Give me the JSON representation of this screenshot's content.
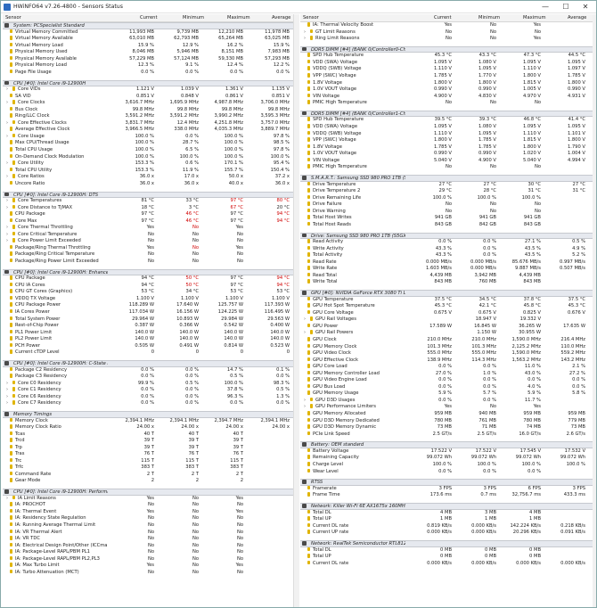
{
  "window": {
    "title": "HWiNFO64 v7.26-4800 - Sensors Status",
    "min": "—",
    "max": "☐",
    "close": "✕"
  },
  "columns": {
    "sensor": "Sensor",
    "current": "Current",
    "minimum": "Minimum",
    "maximum": "Maximum",
    "average": "Average"
  },
  "left": [
    [
      "sect",
      "System: PCSpecialist Standard"
    ],
    [
      "i",
      "Virtual Memory Committed",
      "11,993 MB",
      "9,739 MB",
      "12,210 MB",
      "11,978 MB"
    ],
    [
      "i",
      "Virtual Memory Available",
      "63,010 MB",
      "62,793 MB",
      "65,264 MB",
      "63,025 MB"
    ],
    [
      "i",
      "Virtual Memory Load",
      "15.9 %",
      "12.9 %",
      "16.2 %",
      "15.9 %"
    ],
    [
      "i",
      "Physical Memory Used",
      "8,046 MB",
      "5,946 MB",
      "8,151 MB",
      "7,983 MB"
    ],
    [
      "i",
      "Physical Memory Available",
      "57,229 MB",
      "57,124 MB",
      "59,330 MB",
      "57,293 MB"
    ],
    [
      "i",
      "Physical Memory Load",
      "12.3 %",
      "9.1 %",
      "12.4 %",
      "12.2 %"
    ],
    [
      "i",
      "Page File Usage",
      "0.0 %",
      "0.0 %",
      "0.0 %",
      "0.0 %"
    ],
    [
      "gap"
    ],
    [
      "sect",
      "CPU [#0]: Intel Core i9-12900H"
    ],
    [
      "e",
      "Core VIDs",
      "1.121 V",
      "1.039 V",
      "1.361 V",
      "1.135 V"
    ],
    [
      "i",
      "SA VID",
      "0.851 V",
      "0.848 V",
      "0.861 V",
      "0.851 V"
    ],
    [
      "e",
      "Core Clocks",
      "3,616.7 MHz",
      "1,695.9 MHz",
      "4,987.8 MHz",
      "3,706.0 MHz"
    ],
    [
      "i",
      "Bus Clock",
      "99.8 MHz",
      "99.8 MHz",
      "99.8 MHz",
      "99.8 MHz"
    ],
    [
      "i",
      "Ring/LLC Clock",
      "3,591.2 MHz",
      "3,591.2 MHz",
      "3,990.2 MHz",
      "3,595.3 MHz"
    ],
    [
      "e",
      "Core Effective Clocks",
      "3,831.7 MHz",
      "12.4 MHz",
      "4,251.8 MHz",
      "3,757.0 MHz"
    ],
    [
      "i",
      "Average Effective Clock",
      "3,966.5 MHz",
      "338.0 MHz",
      "4,035.3 MHz",
      "3,889.7 MHz"
    ],
    [
      "e",
      "Core Usage",
      "100.0 %",
      "0.0 %",
      "100.0 %",
      "97.8 %"
    ],
    [
      "i",
      "Max CPU/Thread Usage",
      "100.0 %",
      "28.7 %",
      "100.0 %",
      "98.5 %"
    ],
    [
      "i",
      "Total CPU Usage",
      "100.0 %",
      "6.5 %",
      "100.0 %",
      "97.8 %"
    ],
    [
      "i",
      "On-Demand Clock Modulation",
      "100.0 %",
      "100.0 %",
      "100.0 %",
      "100.0 %"
    ],
    [
      "e",
      "Core Utility",
      "153.3 %",
      "0.6 %",
      "170.1 %",
      "95.4 %"
    ],
    [
      "i",
      "Total CPU Utility",
      "153.3 %",
      "11.9 %",
      "155.7 %",
      "150.4 %"
    ],
    [
      "e",
      "Core Ratios",
      "36.0 x",
      "17.0 x",
      "50.0 x",
      "37.2 x"
    ],
    [
      "i",
      "Uncore Ratio",
      "36.0 x",
      "36.0 x",
      "40.0 x",
      "36.0 x"
    ],
    [
      "gap"
    ],
    [
      "sect",
      "CPU [#0]: Intel Core i9-12900H: DTS"
    ],
    [
      "e",
      "Core Temperatures",
      "81 °C",
      "33 °C",
      "97 °C",
      "80 °C"
    ],
    [
      "e",
      "Core Distance to TjMAX",
      "18 °C",
      "3 °C",
      "67 °C",
      "20 °C"
    ],
    [
      "i",
      "CPU Package",
      "97 °C",
      "46 °C",
      "97 °C",
      "94 °C"
    ],
    [
      "i",
      "Core Max",
      "97 °C",
      "46 °C",
      "97 °C",
      "94 °C"
    ],
    [
      "e",
      "Core Thermal Throttling",
      "Yes",
      "No",
      "Yes",
      ""
    ],
    [
      "e",
      "Core Critical Temperature",
      "No",
      "No",
      "No",
      ""
    ],
    [
      "e",
      "Core Power Limit Exceeded",
      "No",
      "No",
      "No",
      ""
    ],
    [
      "i",
      "Package/Ring Thermal Throttling",
      "Yes",
      "No",
      "Yes",
      ""
    ],
    [
      "i",
      "Package/Ring Critical Temperature",
      "No",
      "No",
      "No",
      ""
    ],
    [
      "i",
      "Package/Ring Power Limit Exceeded",
      "No",
      "No",
      "No",
      ""
    ],
    [
      "gap"
    ],
    [
      "sect",
      "CPU [#0]: Intel Core i9-12900H: Enhanced"
    ],
    [
      "i",
      "CPU Package",
      "94 °C",
      "50 °C",
      "97 °C",
      "94 °C"
    ],
    [
      "i",
      "CPU IA Cores",
      "94 °C",
      "50 °C",
      "97 °C",
      "94 °C"
    ],
    [
      "i",
      "CPU GT Cores (Graphics)",
      "53 °C",
      "34 °C",
      "53 °C",
      "53 °C"
    ],
    [
      "i",
      "VDDQ TX Voltage",
      "1.100 V",
      "1.100 V",
      "1.100 V",
      "1.100 V"
    ],
    [
      "i",
      "CPU Package Power",
      "118.289 W",
      "17.640 W",
      "125.757 W",
      "117.393 W"
    ],
    [
      "i",
      "IA Cores Power",
      "117.034 W",
      "16.156 W",
      "124.225 W",
      "116.495 W"
    ],
    [
      "i",
      "Total System Power",
      "29.964 W",
      "10.893 W",
      "29.984 W",
      "29.563 W"
    ],
    [
      "i",
      "Rest-of-Chip Power",
      "0.387 W",
      "0.366 W",
      "0.542 W",
      "0.400 W"
    ],
    [
      "i",
      "PL1 Power Limit",
      "140.0 W",
      "140.0 W",
      "140.0 W",
      "140.0 W"
    ],
    [
      "i",
      "PL2 Power Limit",
      "140.0 W",
      "140.0 W",
      "140.0 W",
      "140.0 W"
    ],
    [
      "i",
      "PCH Power",
      "0.505 W",
      "0.491 W",
      "0.814 W",
      "0.523 W"
    ],
    [
      "i",
      "Current cTDP Level",
      "0",
      "0",
      "0",
      "0"
    ],
    [
      "gap"
    ],
    [
      "sect",
      "CPU [#0]: Intel Core i9-12900H: C-State Re..."
    ],
    [
      "i",
      "Package C2 Residency",
      "0.0 %",
      "0.0 %",
      "14.7 %",
      "0.1 %"
    ],
    [
      "i",
      "Package C3 Residency",
      "0.0 %",
      "0.0 %",
      "0.5 %",
      "0.0 %"
    ],
    [
      "e",
      "Core C0 Residency",
      "99.9 %",
      "0.5 %",
      "100.0 %",
      "98.3 %"
    ],
    [
      "e",
      "Core C1 Residency",
      "0.0 %",
      "0.0 %",
      "37.8 %",
      "0.5 %"
    ],
    [
      "e",
      "Core C6 Residency",
      "0.0 %",
      "0.0 %",
      "96.3 %",
      "1.3 %"
    ],
    [
      "e",
      "Core C7 Residency",
      "0.0 %",
      "0.0 %",
      "0.0 %",
      "0.0 %"
    ],
    [
      "gap"
    ],
    [
      "sect",
      "Memory Timings"
    ],
    [
      "i",
      "Memory Clock",
      "2,394.1 MHz",
      "2,394.1 MHz",
      "2,394.7 MHz",
      "2,394.1 MHz"
    ],
    [
      "i",
      "Memory Clock Ratio",
      "24.00 x",
      "24.00 x",
      "24.00 x",
      "24.00 x"
    ],
    [
      "i",
      "Tcas",
      "40 T",
      "40 T",
      "40 T",
      ""
    ],
    [
      "i",
      "Trcd",
      "39 T",
      "39 T",
      "39 T",
      ""
    ],
    [
      "i",
      "Trp",
      "39 T",
      "39 T",
      "39 T",
      ""
    ],
    [
      "i",
      "Tras",
      "76 T",
      "76 T",
      "76 T",
      ""
    ],
    [
      "i",
      "Trc",
      "115 T",
      "115 T",
      "115 T",
      ""
    ],
    [
      "i",
      "Trfc",
      "383 T",
      "383 T",
      "383 T",
      ""
    ],
    [
      "i",
      "Command Rate",
      "2 T",
      "2 T",
      "2 T",
      ""
    ],
    [
      "i",
      "Gear Mode",
      "2",
      "2",
      "2",
      ""
    ],
    [
      "gap"
    ],
    [
      "sect",
      "CPU [#0]: Intel Core i9-12900H: Performan..."
    ],
    [
      "e",
      "IA Limit Reasons",
      "Yes",
      "No",
      "Yes",
      ""
    ],
    [
      "i",
      "IA: PROCHOT",
      "No",
      "No",
      "No",
      ""
    ],
    [
      "i",
      "IA: Thermal Event",
      "Yes",
      "No",
      "Yes",
      ""
    ],
    [
      "i",
      "IA: Residency State Regulation",
      "No",
      "No",
      "No",
      ""
    ],
    [
      "i",
      "IA: Running Average Thermal Limit",
      "No",
      "No",
      "No",
      ""
    ],
    [
      "i",
      "IA: VR Thermal Alert",
      "No",
      "No",
      "No",
      ""
    ],
    [
      "i",
      "IA: VR TDC",
      "No",
      "No",
      "No",
      ""
    ],
    [
      "i",
      "IA: Electrical Design Point/Other (ICCma...",
      "No",
      "No",
      "No",
      ""
    ],
    [
      "i",
      "IA: Package-Level RAPL/PBM PL1",
      "No",
      "No",
      "No",
      ""
    ],
    [
      "i",
      "IA: Package-Level RAPL/PBM PL2,PL3",
      "No",
      "No",
      "No",
      ""
    ],
    [
      "i",
      "IA: Max Turbo Limit",
      "Yes",
      "No",
      "Yes",
      ""
    ],
    [
      "i",
      "IA: Turbo Attenuation (MCT)",
      "No",
      "No",
      "No",
      ""
    ]
  ],
  "right": [
    [
      "i",
      "IA: Thermal Velocity Boost",
      "Yes",
      "No",
      "Yes",
      ""
    ],
    [
      "e",
      "GT Limit Reasons",
      "No",
      "No",
      "No",
      ""
    ],
    [
      "e",
      "Ring Limit Reasons",
      "No",
      "No",
      "Yes",
      ""
    ],
    [
      "gap"
    ],
    [
      "sect",
      "DDR5 DIMM [#4] (BANK 0/Controller0-Chan..."
    ],
    [
      "i",
      "SPD Hub Temperature",
      "45.3 °C",
      "43.3 °C",
      "47.3 °C",
      "44.5 °C"
    ],
    [
      "i",
      "VDD (SWA) Voltage",
      "1.095 V",
      "1.080 V",
      "1.095 V",
      "1.095 V"
    ],
    [
      "i",
      "VDDQ (SWB) Voltage",
      "1.110 V",
      "1.095 V",
      "1.110 V",
      "1.097 V"
    ],
    [
      "i",
      "VPP (SWC) Voltage",
      "1.785 V",
      "1.770 V",
      "1.800 V",
      "1.785 V"
    ],
    [
      "i",
      "1.8V Voltage",
      "1.800 V",
      "1.800 V",
      "1.815 V",
      "1.800 V"
    ],
    [
      "i",
      "1.0V VOUT Voltage",
      "0.990 V",
      "0.990 V",
      "1.005 V",
      "0.990 V"
    ],
    [
      "i",
      "VIN Voltage",
      "4.900 V",
      "4.830 V",
      "4.970 V",
      "4.931 V"
    ],
    [
      "i",
      "PMIC High Temperature",
      "No",
      "No",
      "No",
      ""
    ],
    [
      "gap"
    ],
    [
      "sect",
      "DDR5 DIMM [#4] (BANK 0/Controller1-Chan..."
    ],
    [
      "i",
      "SPD Hub Temperature",
      "39.5 °C",
      "39.3 °C",
      "46.8 °C",
      "41.4 °C"
    ],
    [
      "i",
      "VDD (SWA) Voltage",
      "1.095 V",
      "1.080 V",
      "1.095 V",
      "1.095 V"
    ],
    [
      "i",
      "VDDQ (SWB) Voltage",
      "1.110 V",
      "1.095 V",
      "1.110 V",
      "1.101 V"
    ],
    [
      "i",
      "VPP (SWC) Voltage",
      "1.800 V",
      "1.785 V",
      "1.815 V",
      "1.800 V"
    ],
    [
      "i",
      "1.8V Voltage",
      "1.785 V",
      "1.785 V",
      "1.800 V",
      "1.790 V"
    ],
    [
      "i",
      "1.0V VOUT Voltage",
      "0.990 V",
      "0.990 V",
      "1.020 V",
      "1.004 V"
    ],
    [
      "i",
      "VIN Voltage",
      "5.040 V",
      "4.900 V",
      "5.040 V",
      "4.994 V"
    ],
    [
      "i",
      "PMIC High Temperature",
      "No",
      "No",
      "No",
      ""
    ],
    [
      "gap"
    ],
    [
      "sect",
      "S.M.A.R.T.: Samsung SSD 980 PRO 1TB (S5..."
    ],
    [
      "i",
      "Drive Temperature",
      "27 °C",
      "27 °C",
      "30 °C",
      "27 °C"
    ],
    [
      "i",
      "Drive Temperature 2",
      "29 °C",
      "28 °C",
      "31 °C",
      "31 °C"
    ],
    [
      "i",
      "Drive Remaining Life",
      "100.0 %",
      "100.0 %",
      "100.0 %",
      ""
    ],
    [
      "i",
      "Drive Failure",
      "No",
      "No",
      "No",
      ""
    ],
    [
      "i",
      "Drive Warning",
      "No",
      "No",
      "No",
      ""
    ],
    [
      "i",
      "Total Host Writes",
      "941 GB",
      "941 GB",
      "941 GB",
      ""
    ],
    [
      "i",
      "Total Host Reads",
      "843 GB",
      "842 GB",
      "843 GB",
      ""
    ],
    [
      "gap"
    ],
    [
      "sect",
      "Drive: Samsung SSD 980 PRO 1TB (S5GXNX..."
    ],
    [
      "i",
      "Read Activity",
      "0.0 %",
      "0.0 %",
      "27.1 %",
      "0.5 %"
    ],
    [
      "i",
      "Write Activity",
      "43.3 %",
      "0.0 %",
      "43.5 %",
      "4.9 %"
    ],
    [
      "i",
      "Total Activity",
      "43.3 %",
      "0.0 %",
      "43.5 %",
      "5.2 %"
    ],
    [
      "i",
      "Read Rate",
      "0.000 MB/s",
      "0.000 MB/s",
      "85.676 MB/s",
      "0.997 MB/s"
    ],
    [
      "i",
      "Write Rate",
      "1.603 MB/s",
      "0.000 MB/s",
      "9.887 MB/s",
      "0.507 MB/s"
    ],
    [
      "i",
      "Read Total",
      "4,439 MB",
      "3,942 MB",
      "4,439 MB",
      ""
    ],
    [
      "i",
      "Write Total",
      "843 MB",
      "760 MB",
      "843 MB",
      ""
    ],
    [
      "gap"
    ],
    [
      "sect",
      "GPU [#0]: NVIDIA GeForce RTX 3080 Ti Lap..."
    ],
    [
      "i",
      "GPU Temperature",
      "37.5 °C",
      "34.5 °C",
      "37.8 °C",
      "37.5 °C"
    ],
    [
      "i",
      "GPU Hot Spot Temperature",
      "45.3 °C",
      "42.1 °C",
      "45.8 °C",
      "45.3 °C"
    ],
    [
      "i",
      "GPU Core Voltage",
      "0.675 V",
      "0.675 V",
      "0.825 V",
      "0.676 V"
    ],
    [
      "e",
      "GPU Rail Voltages",
      "",
      "18.947 V",
      "19.332 V",
      ""
    ],
    [
      "i",
      "GPU Power",
      "17.589 W",
      "16.845 W",
      "36.265 W",
      "17.635 W"
    ],
    [
      "e",
      "GPU Rail Powers",
      "",
      "1.150 W",
      "30.955 W",
      ""
    ],
    [
      "i",
      "GPU Clock",
      "210.0 MHz",
      "210.0 MHz",
      "1,590.0 MHz",
      "216.4 MHz"
    ],
    [
      "i",
      "GPU Memory Clock",
      "101.3 MHz",
      "101.3 MHz",
      "2,125.2 MHz",
      "110.0 MHz"
    ],
    [
      "i",
      "GPU Video Clock",
      "555.0 MHz",
      "555.0 MHz",
      "1,590.0 MHz",
      "559.2 MHz"
    ],
    [
      "i",
      "GPU Effective Clock",
      "138.9 MHz",
      "114.3 MHz",
      "1,563.2 MHz",
      "143.2 MHz"
    ],
    [
      "i",
      "GPU Core Load",
      "0.0 %",
      "0.0 %",
      "11.0 %",
      "2.1 %"
    ],
    [
      "i",
      "GPU Memory Controller Load",
      "27.0 %",
      "1.0 %",
      "43.0 %",
      "27.2 %"
    ],
    [
      "i",
      "GPU Video Engine Load",
      "0.0 %",
      "0.0 %",
      "0.0 %",
      "0.0 %"
    ],
    [
      "i",
      "GPU Bus Load",
      "0.0 %",
      "0.0 %",
      "4.0 %",
      "0.0 %"
    ],
    [
      "i",
      "GPU Memory Usage",
      "5.9 %",
      "5.7 %",
      "5.9 %",
      "5.8 %"
    ],
    [
      "e",
      "GPU D3D Usages",
      "0.0 %",
      "0.0 %",
      "11.7 %",
      ""
    ],
    [
      "e",
      "GPU Performance Limiters",
      "Yes",
      "No",
      "Yes",
      ""
    ],
    [
      "i",
      "GPU Memory Allocated",
      "959 MB",
      "940 MB",
      "959 MB",
      "959 MB"
    ],
    [
      "i",
      "GPU D3D Memory Dedicated",
      "780 MB",
      "761 MB",
      "780 MB",
      "779 MB"
    ],
    [
      "i",
      "GPU D3D Memory Dynamic",
      "73 MB",
      "71 MB",
      "74 MB",
      "73 MB"
    ],
    [
      "i",
      "PCIe Link Speed",
      "2.5 GT/s",
      "2.5 GT/s",
      "16.0 GT/s",
      "2.6 GT/s"
    ],
    [
      "gap"
    ],
    [
      "sect",
      "Battery: OEM standard"
    ],
    [
      "i",
      "Battery Voltage",
      "17.522 V",
      "17.522 V",
      "17.545 V",
      "17.532 V"
    ],
    [
      "i",
      "Remaining Capacity",
      "99.072 Wh",
      "99.072 Wh",
      "99.072 Wh",
      "99.072 Wh"
    ],
    [
      "i",
      "Charge Level",
      "100.0 %",
      "100.0 %",
      "100.0 %",
      "100.0 %"
    ],
    [
      "i",
      "Wear Level",
      "0.0 %",
      "0.0 %",
      "0.0 %",
      ""
    ],
    [
      "gap"
    ],
    [
      "sect",
      "RTSS"
    ],
    [
      "i",
      "Framerate",
      "3 FPS",
      "3 FPS",
      "6 FPS",
      "3 FPS"
    ],
    [
      "i",
      "Frame Time",
      "173.6 ms",
      "0.7 ms",
      "32,756.7 ms",
      "433.3 ms"
    ],
    [
      "gap"
    ],
    [
      "sect",
      "Network: Killer Wi-Fi 6E AX1675x 160MHz W..."
    ],
    [
      "i",
      "Total DL",
      "4 MB",
      "3 MB",
      "4 MB",
      ""
    ],
    [
      "i",
      "Total UP",
      "1 MB",
      "1 MB",
      "1 MB",
      ""
    ],
    [
      "i",
      "Current DL rate",
      "0.819 KB/s",
      "0.000 KB/s",
      "142.224 KB/s",
      "0.218 KB/s"
    ],
    [
      "i",
      "Current UP rate",
      "0.000 KB/s",
      "0.000 KB/s",
      "20.296 KB/s",
      "0.091 KB/s"
    ],
    [
      "gap"
    ],
    [
      "sect",
      "Network: RealTek Semiconductor RTL8125 ..."
    ],
    [
      "i",
      "Total DL",
      "0 MB",
      "0 MB",
      "0 MB",
      ""
    ],
    [
      "i",
      "Total UP",
      "0 MB",
      "0 MB",
      "0 MB",
      ""
    ],
    [
      "i",
      "Current DL rate",
      "0.000 KB/s",
      "0.000 KB/s",
      "0.000 KB/s",
      "0.000 KB/s"
    ]
  ],
  "redCells": {
    "left": [
      [
        27,
        2
      ],
      [
        27,
        3
      ],
      [
        28,
        2
      ],
      [
        29,
        1
      ],
      [
        29,
        3
      ],
      [
        30,
        1
      ],
      [
        30,
        3
      ],
      [
        31,
        1
      ],
      [
        31,
        3
      ],
      [
        34,
        1
      ],
      [
        34,
        3
      ],
      [
        39,
        1
      ],
      [
        39,
        3
      ],
      [
        40,
        1
      ],
      [
        40,
        3
      ]
    ]
  }
}
